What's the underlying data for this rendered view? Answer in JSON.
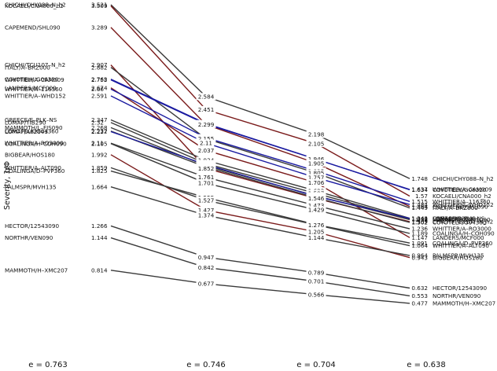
{
  "chart_data": {
    "type": "line",
    "ylabel": "Severity, 1/Φ",
    "columns": [
      "e = 0.763",
      "e = 0.746",
      "e = 0.704",
      "e = 0.638"
    ],
    "series": [
      {
        "name": "CHICHI/CHY088–N_h2",
        "color": "#3a3a3a",
        "values": [
          3.521,
          2.584,
          2.198,
          1.748
        ]
      },
      {
        "name": "KOCAELI/CNA000_h2",
        "color": "#7a1a1a",
        "values": [
          3.509,
          2.451,
          2.105,
          1.57
        ]
      },
      {
        "name": "CAPEMEND/SHL090",
        "color": "#7a1a1a",
        "values": [
          3.289,
          2.299,
          1.905,
          1.464
        ]
      },
      {
        "name": "CHICHI/TCU107–N_h2",
        "color": "#7a1a1a",
        "values": [
          2.907,
          1.852,
          1.546,
          1.309
        ]
      },
      {
        "name": "ITALY/A–BRZ000",
        "color": "#3a3a3a",
        "values": [
          2.882,
          2.155,
          1.805,
          1.449
        ]
      },
      {
        "name": "COYOTELK/G06320",
        "color": "#1a1aa0",
        "values": [
          2.762,
          2.309,
          1.946,
          1.634
        ]
      },
      {
        "name": "WHITTIER/A–CAMO09",
        "color": "#1a1aa0",
        "values": [
          2.755,
          2.304,
          1.946,
          1.637
        ]
      },
      {
        "name": "LANDERS/MCF000",
        "color": "#7a1a1a",
        "values": [
          2.674,
          2.037,
          1.706,
          1.147
        ]
      },
      {
        "name": "WHITTIER/A–116360",
        "color": "#1a1aa0",
        "values": [
          2.66,
          2.165,
          1.825,
          1.515
        ]
      },
      {
        "name": "WHITTIER/A–WHD152",
        "color": "#1a1aa0",
        "values": [
          2.591,
          2.11,
          1.757,
          1.484
        ]
      },
      {
        "name": "GREECE/E–PLK–NS",
        "color": "#3a3a3a",
        "values": [
          2.347,
          1.934,
          1.623,
          1.344
        ]
      },
      {
        "name": "LOMAP/TIB290",
        "color": "#3a3a3a",
        "values": [
          2.32,
          1.901,
          1.597,
          1.333
        ]
      },
      {
        "name": "MAMMOTH/L–FIS090",
        "color": "#3a3a3a",
        "values": [
          2.268,
          1.88,
          1.572,
          1.33
        ]
      },
      {
        "name": "COYOTELK/G04360",
        "color": "#3a3a3a",
        "values": [
          2.232,
          1.866,
          1.553,
          1.302
        ]
      },
      {
        "name": "LOMAP/A02043",
        "color": "#1a1aa0",
        "values": [
          2.227,
          1.89,
          1.567,
          1.342
        ]
      },
      {
        "name": "WHITTIER/A–RO3000",
        "color": "#3a3a3a",
        "values": [
          2.11,
          1.761,
          1.473,
          1.236
        ]
      },
      {
        "name": "COALINGA/H–COH090",
        "color": "#3a3a3a",
        "values": [
          2.105,
          1.701,
          1.429,
          1.189
        ]
      },
      {
        "name": "BIGBEAR/HOS180",
        "color": "#7a1a1a",
        "values": [
          1.992,
          1.427,
          1.205,
          0.943
        ]
      },
      {
        "name": "WHITTIER/A–ALT090",
        "color": "#3a3a3a",
        "values": [
          1.859,
          1.527,
          1.276,
          1.064
        ]
      },
      {
        "name": "COALINGA/D–PVP360",
        "color": "#3a3a3a",
        "values": [
          1.825,
          1.555,
          1.279,
          1.091
        ]
      },
      {
        "name": "PALMSPR/MVH135",
        "color": "#3a3a3a",
        "values": [
          1.664,
          1.374,
          1.144,
          0.964
        ]
      },
      {
        "name": "HECTOR/12543090",
        "color": "#3a3a3a",
        "values": [
          1.266,
          0.947,
          0.789,
          0.632
        ]
      },
      {
        "name": "NORTHR/VEN090",
        "color": "#3a3a3a",
        "values": [
          1.144,
          0.842,
          0.701,
          0.553
        ]
      },
      {
        "name": "MAMMOTH/H–XMC207",
        "color": "#3a3a3a",
        "values": [
          0.814,
          0.677,
          0.566,
          0.477
        ]
      }
    ],
    "left_labels": [
      {
        "name": "CHICHI/CHY088–N_h2",
        "value": "3.521"
      },
      {
        "name": "KOCAELI/CNA000_h2",
        "value": "3.509"
      },
      {
        "name": "CAPEMEND/SHL090",
        "value": "3.289"
      },
      {
        "name": "CHICHI/TCU107–N_h2",
        "value": "2.907"
      },
      {
        "name": "ITALY/A–BRZ000",
        "value": "2.882"
      },
      {
        "name": "COYOTELK/G06320",
        "value": "2.762"
      },
      {
        "name": "WHITTIER/A–CAM009",
        "value": "2.755"
      },
      {
        "name": "LANDERS/MCF000",
        "value": "2.674"
      },
      {
        "name": "WHITTIER/A–116360",
        "value": "2.66"
      },
      {
        "name": "WHITTIER/A–WHD152",
        "value": "2.591"
      },
      {
        "name": "GREECE/E–PLK–NS",
        "value": "2.347"
      },
      {
        "name": "LOMAP/TIB290",
        "value": "2.32"
      },
      {
        "name": "MAMMOTH/L–FIS090",
        "value": "2.268"
      },
      {
        "name": "COYOTELK/G04360",
        "value": "2.232"
      },
      {
        "name": "LOMAP/A02043",
        "value": "2.227"
      },
      {
        "name": "WHITTIER/A–RO3000",
        "value": "2.11"
      },
      {
        "name": "COALINGA/H–COH090",
        "value": "2.105"
      },
      {
        "name": "BIGBEAR/HOS180",
        "value": "1.992"
      },
      {
        "name": "WHITTIER/A–ALT090",
        "value": "1.859"
      },
      {
        "name": "COALINGA/D–PVP360",
        "value": "1.825"
      },
      {
        "name": "PALMSPR/MVH135",
        "value": "1.664"
      },
      {
        "name": "HECTOR/12543090",
        "value": "1.266"
      },
      {
        "name": "NORTHR/VEN090",
        "value": "1.144"
      },
      {
        "name": "MAMMOTH/H–XMC207",
        "value": "0.814"
      }
    ],
    "right_labels": [
      {
        "name": "CHICHI/CHY088–N_h2",
        "value": "1.748"
      },
      {
        "name": "WHITTIER/A–CAM009",
        "value": "1.637"
      },
      {
        "name": "COYOTELK/G06320",
        "value": "1.634"
      },
      {
        "name": "KOCAELI/CNA000_h2",
        "value": "1.57"
      },
      {
        "name": "WHITTIER/A–116360",
        "value": "1.515"
      },
      {
        "name": "WHITTIER/A–WHD152",
        "value": "1.484"
      },
      {
        "name": "CAPEMEND/SHL090",
        "value": "1.464"
      },
      {
        "name": "ITALY/A–BRZ000",
        "value": "1.449"
      },
      {
        "name": "GREECE/E–PLK–NS",
        "value": "1.344"
      },
      {
        "name": "LOMAP/A02043",
        "value": "1.342"
      },
      {
        "name": "LOMAP/TIB290",
        "value": "1.333"
      },
      {
        "name": "MAMMOTH/L–FIS090",
        "value": "1.33"
      },
      {
        "name": "CHICHI/TCU107–N_h2",
        "value": "1.309"
      },
      {
        "name": "COYOTELK/G04360",
        "value": "1.302"
      },
      {
        "name": "WHITTIER/A–RO3000",
        "value": "1.236"
      },
      {
        "name": "COALINGA/H–COH090",
        "value": "1.189"
      },
      {
        "name": "LANDERS/MCF000",
        "value": "1.147"
      },
      {
        "name": "COALINGA/D–PVP360",
        "value": "1.091"
      },
      {
        "name": "WHITTIER/A–ALT090",
        "value": "1.064"
      },
      {
        "name": "PALMSPR/MVH135",
        "value": "0.964"
      },
      {
        "name": "BIGBEAR/HOS180",
        "value": "0.943"
      },
      {
        "name": "HECTOR/12543090",
        "value": "0.632"
      },
      {
        "name": "NORTHR/VEN090",
        "value": "0.553"
      },
      {
        "name": "MAMMOTH/H–XMC207",
        "value": "0.477"
      }
    ],
    "col2_values": [
      "2.584",
      "2.451",
      "2.309",
      "2.304",
      "2.299",
      "2.165",
      "2.155",
      "2.11",
      "2.037",
      "1.934",
      "1.901",
      "1.89",
      "1.88",
      "1.866",
      "1.852",
      "1.761",
      "1.701",
      "1.555",
      "1.527",
      "1.427",
      "1.374",
      "0.947",
      "0.842",
      "0.677"
    ],
    "col3_values": [
      "2.198",
      "2.105",
      "1.946",
      "1.946",
      "1.905",
      "1.825",
      "1.805",
      "1.757",
      "1.706",
      "1.623",
      "1.597",
      "1.572",
      "1.567",
      "1.553",
      "1.546",
      "1.473",
      "1.429",
      "1.279",
      "1.276",
      "1.205",
      "1.144",
      "0.789",
      "0.701",
      "0.566"
    ]
  }
}
